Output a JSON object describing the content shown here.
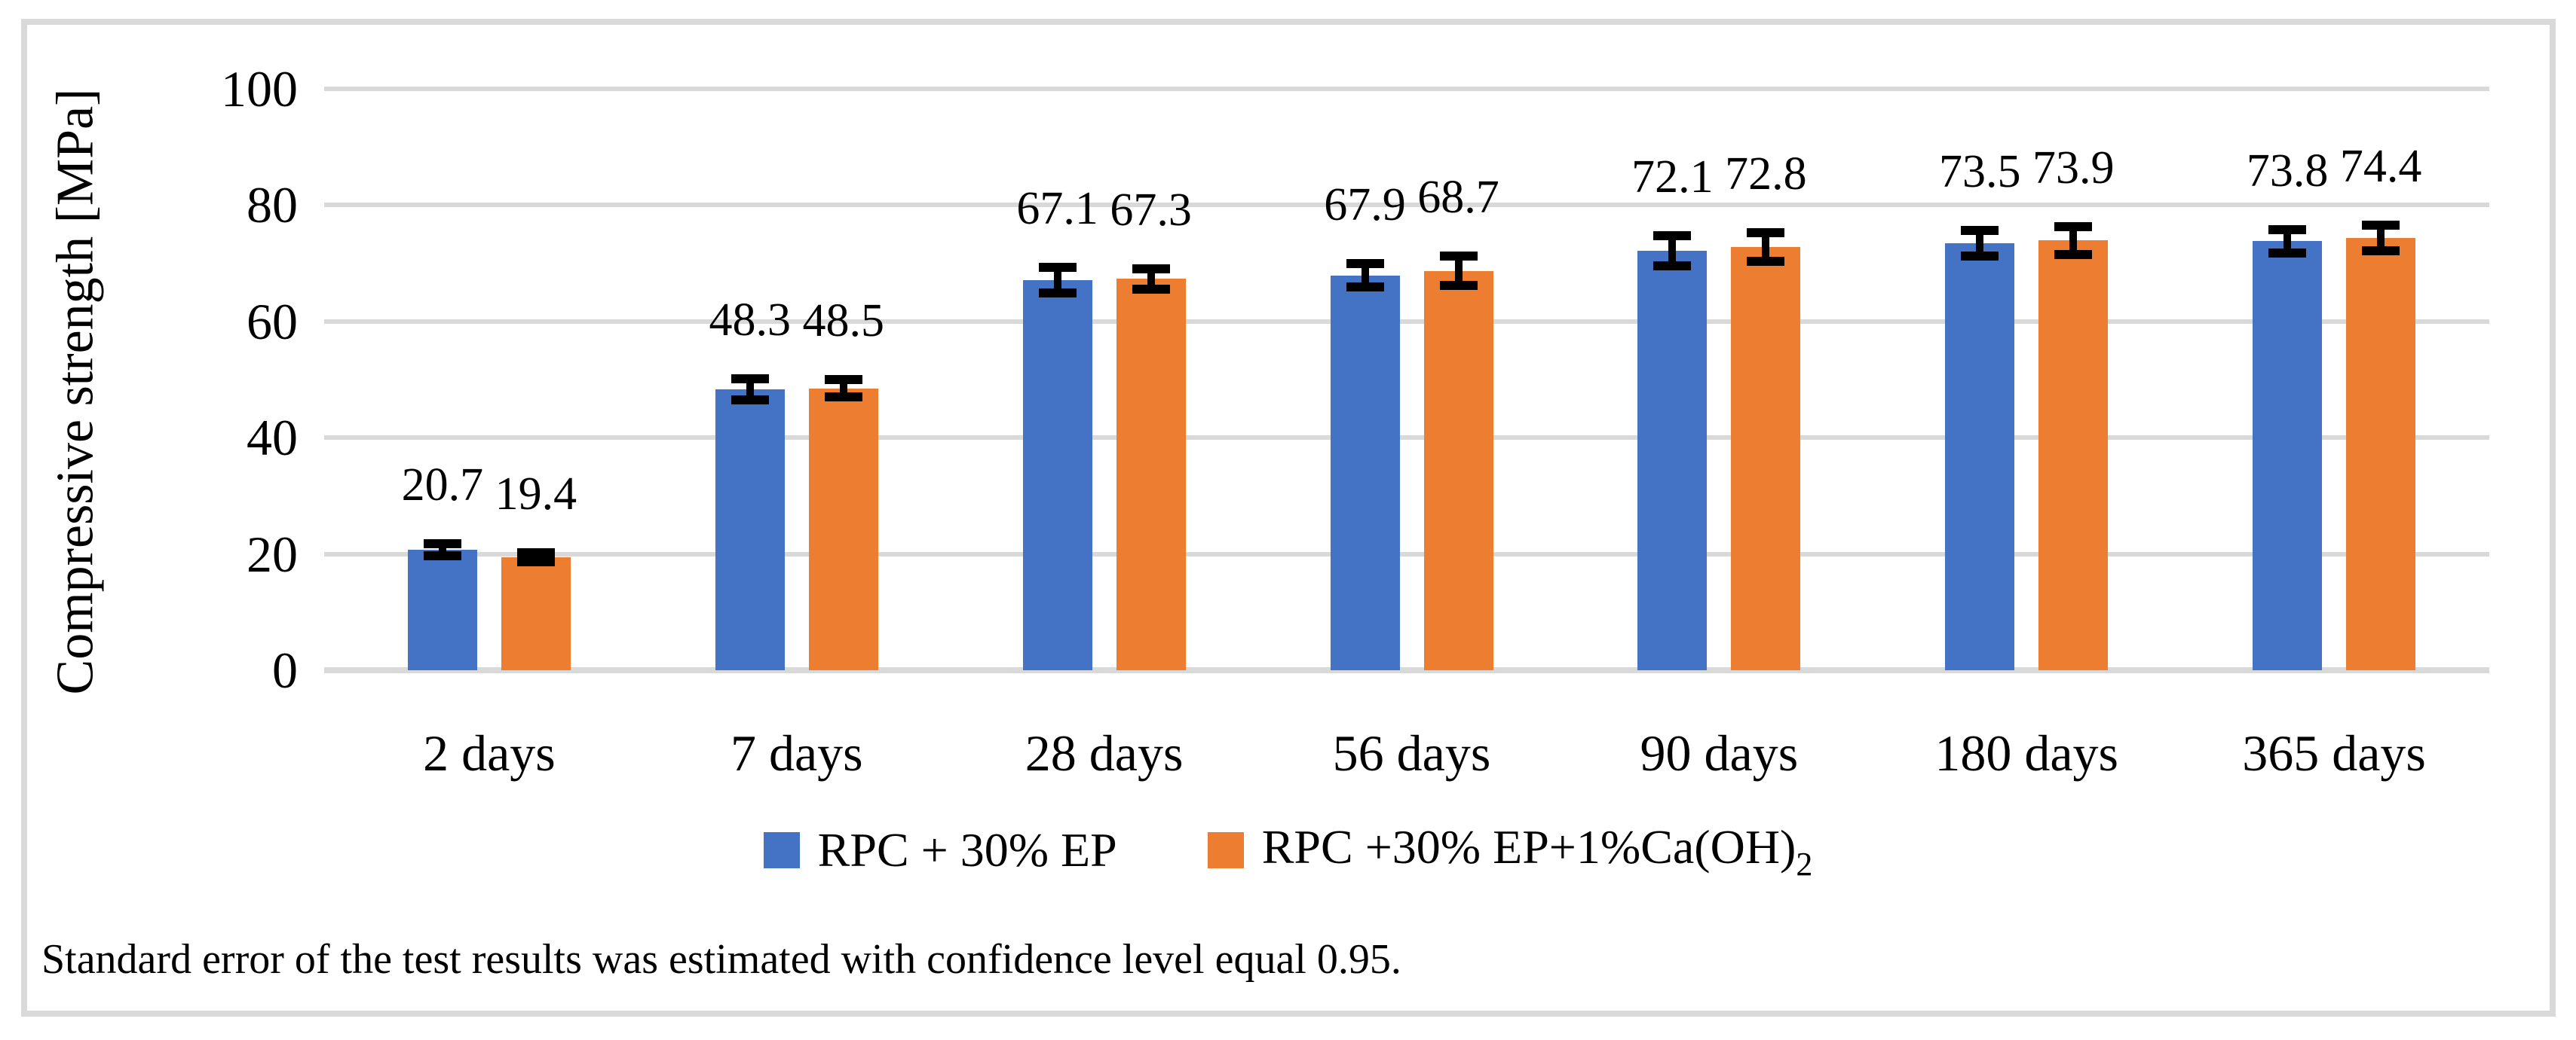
{
  "chart_data": {
    "type": "bar",
    "title": "",
    "xlabel": "",
    "ylabel": "Compressive strength [MPa]",
    "ylim": [
      0,
      100
    ],
    "yticks": [
      0,
      20,
      40,
      60,
      80,
      100
    ],
    "grid": true,
    "legend_position": "bottom-center",
    "value_label_format": "0.0",
    "categories": [
      "2 days",
      "7 days",
      "28 days",
      "56 days",
      "90 days",
      "180 days",
      "365 days"
    ],
    "series": [
      {
        "name": "RPC + 30% EP",
        "name_subscript": "",
        "color": "#4472C4",
        "values": [
          20.7,
          48.3,
          67.1,
          67.9,
          72.1,
          73.5,
          73.8
        ],
        "errors": [
          1.0,
          1.8,
          2.2,
          2.0,
          2.6,
          2.2,
          2.0
        ]
      },
      {
        "name": "RPC +30% EP+1%Ca(OH)",
        "name_subscript": "2",
        "color": "#ED7D31",
        "values": [
          19.4,
          48.5,
          67.3,
          68.7,
          72.8,
          73.9,
          74.4
        ],
        "errors": [
          0.8,
          1.5,
          1.8,
          2.5,
          2.5,
          2.4,
          2.2
        ]
      }
    ]
  },
  "footnote": {
    "text": "Standard error of the test results was estimated with confidence level equal 0.95."
  },
  "colors": {
    "grid": "#D9D9D9",
    "frame": "#D9D9D9",
    "error_bar": "#000000",
    "background": "#FFFFFF"
  }
}
